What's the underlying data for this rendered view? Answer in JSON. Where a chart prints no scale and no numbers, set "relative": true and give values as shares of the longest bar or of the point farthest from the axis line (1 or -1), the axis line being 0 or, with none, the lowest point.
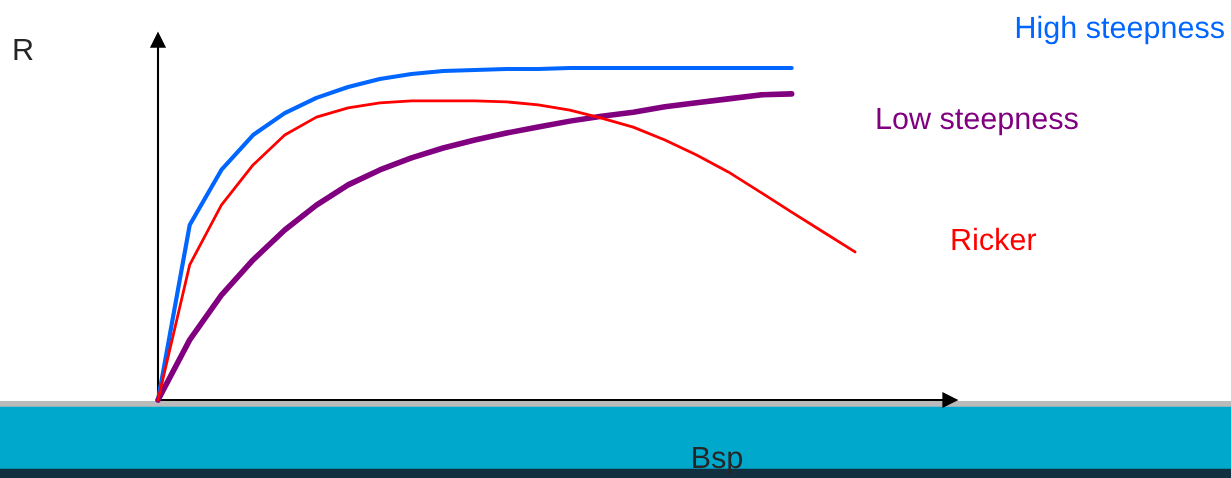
{
  "chart_data": {
    "type": "line",
    "relative": true,
    "xlabel": "Bsp",
    "ylabel": "R",
    "legend": false,
    "categories": [
      null,
      null,
      null,
      null,
      null,
      null,
      null,
      null,
      null,
      null,
      null,
      null,
      null,
      null,
      null,
      null,
      null,
      null,
      null,
      null,
      null,
      null,
      null
    ],
    "series": [
      {
        "name": "High steepness",
        "color": "#0066ff",
        "values": [
          0,
          0.527,
          0.693,
          0.798,
          0.864,
          0.91,
          0.943,
          0.967,
          0.982,
          0.991,
          0.994,
          0.997,
          0.997,
          1,
          1,
          1,
          1,
          1,
          1,
          1,
          1,
          null,
          null
        ]
      },
      {
        "name": "Low steepness",
        "color": "#800080",
        "values": [
          0,
          0.181,
          0.316,
          0.422,
          0.512,
          0.587,
          0.648,
          0.693,
          0.729,
          0.759,
          0.783,
          0.804,
          0.822,
          0.84,
          0.855,
          0.867,
          0.883,
          0.895,
          0.907,
          0.919,
          0.922,
          null,
          null
        ]
      },
      {
        "name": "Ricker",
        "color": "#ff0000",
        "values": [
          0,
          0.407,
          0.587,
          0.708,
          0.798,
          0.852,
          0.88,
          0.895,
          0.901,
          0.901,
          0.901,
          0.898,
          0.889,
          0.873,
          0.849,
          0.822,
          0.783,
          0.738,
          0.687,
          0.627,
          0.566,
          0.506,
          0.446
        ]
      }
    ]
  }
}
